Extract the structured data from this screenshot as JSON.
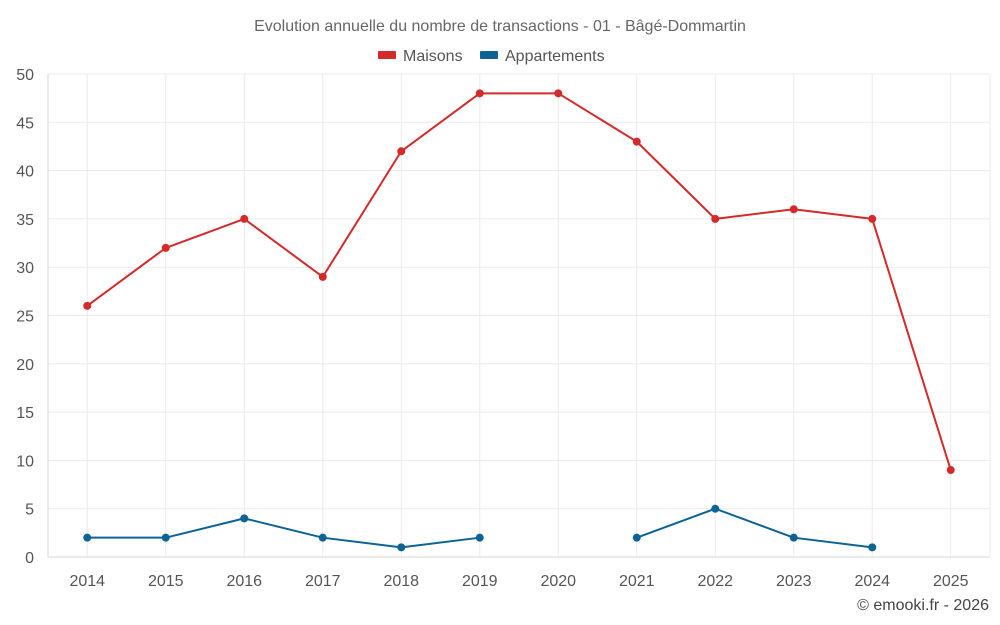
{
  "chart_data": {
    "type": "line",
    "title": "Evolution annuelle du nombre de transactions - 01 - Bâgé-Dommartin",
    "xlabel": "",
    "ylabel": "",
    "categories": [
      "2014",
      "2015",
      "2016",
      "2017",
      "2018",
      "2019",
      "2020",
      "2021",
      "2022",
      "2023",
      "2024",
      "2025"
    ],
    "ylim": [
      0,
      50
    ],
    "yticks": [
      0,
      5,
      10,
      15,
      20,
      25,
      30,
      35,
      40,
      45,
      50
    ],
    "grid": true,
    "legend_position": "top-center",
    "series": [
      {
        "name": "Maisons",
        "color": "#d42a2a",
        "values": [
          26,
          32,
          35,
          29,
          42,
          48,
          48,
          43,
          35,
          36,
          35,
          9
        ]
      },
      {
        "name": "Appartements",
        "color": "#0b6396",
        "values": [
          2,
          2,
          4,
          2,
          1,
          2,
          null,
          2,
          5,
          2,
          1,
          null
        ]
      }
    ]
  },
  "credit": "© emooki.fr - 2026"
}
